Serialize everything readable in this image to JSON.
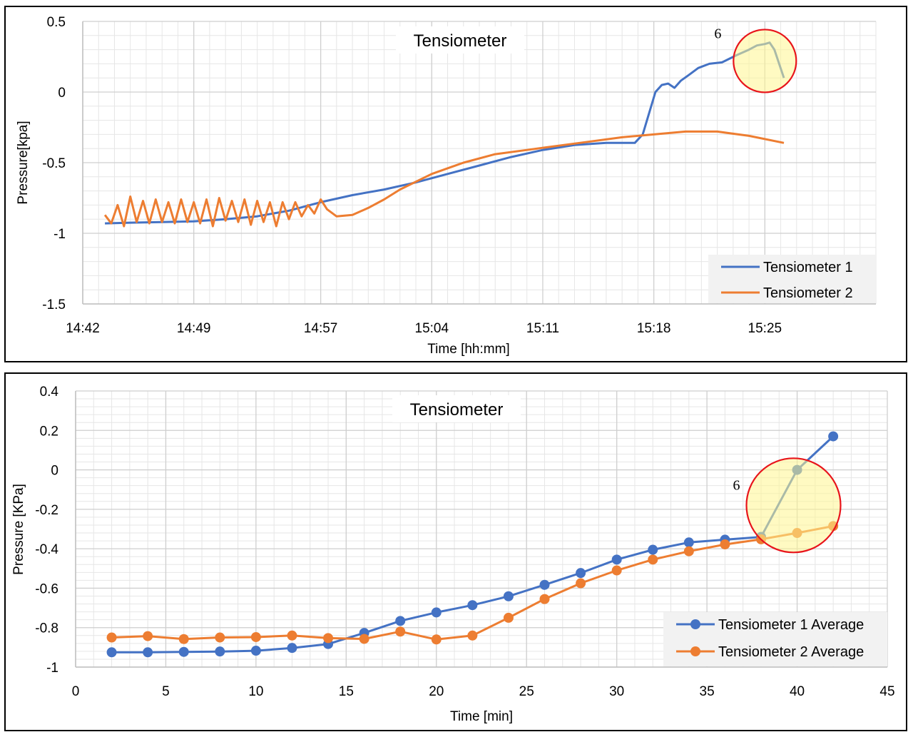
{
  "colors": {
    "series1": "#4472C4",
    "series2": "#ED7D31",
    "highlight_fill": "#FFF68F",
    "highlight_stroke": "#E8141B"
  },
  "chart_data": [
    {
      "type": "line",
      "title": "Tensiometer",
      "xlabel": "Time [hh:mm]",
      "ylabel": "Pressure[kpa]",
      "x_unit": "minutes since 14:42",
      "xlim": [
        0,
        50
      ],
      "ylim": [
        -1.5,
        0.5
      ],
      "x_ticks": [
        {
          "x": 0,
          "label": "14:42"
        },
        {
          "x": 7,
          "label": "14:49"
        },
        {
          "x": 15,
          "label": "14:57"
        },
        {
          "x": 22,
          "label": "15:04"
        },
        {
          "x": 29,
          "label": "15:11"
        },
        {
          "x": 36,
          "label": "15:18"
        },
        {
          "x": 43,
          "label": "15:25"
        }
      ],
      "y_ticks": [
        0.5,
        0,
        -0.5,
        -1,
        -1.5
      ],
      "y_tick_labels": [
        "0.5",
        "0",
        "-0.5",
        "-1",
        "-1.5"
      ],
      "grid": true,
      "legend": "bottom-right",
      "annotation": {
        "label": "6",
        "x": 43,
        "y": 0.22
      },
      "series": [
        {
          "name": "Tensiometer 1",
          "x": [
            1.4,
            3,
            5,
            7,
            9,
            11,
            13,
            15,
            17,
            19,
            21,
            23,
            25,
            27,
            29,
            31,
            33,
            34.8,
            35.3,
            35.7,
            36.1,
            36.5,
            36.9,
            37.3,
            37.7,
            38.2,
            38.8,
            39.5,
            40.3,
            41.2,
            42,
            42.5,
            43,
            43.3,
            43.6,
            44.2
          ],
          "y": [
            -0.93,
            -0.925,
            -0.92,
            -0.915,
            -0.9,
            -0.88,
            -0.84,
            -0.78,
            -0.73,
            -0.69,
            -0.64,
            -0.58,
            -0.52,
            -0.46,
            -0.41,
            -0.375,
            -0.36,
            -0.36,
            -0.3,
            -0.15,
            0.0,
            0.05,
            0.06,
            0.03,
            0.08,
            0.12,
            0.17,
            0.2,
            0.21,
            0.26,
            0.3,
            0.33,
            0.34,
            0.35,
            0.3,
            0.1
          ]
        },
        {
          "name": "Tensiometer 2",
          "x": [
            1.4,
            1.8,
            2.2,
            2.6,
            3.0,
            3.4,
            3.8,
            4.2,
            4.6,
            5.0,
            5.4,
            5.8,
            6.2,
            6.6,
            7.0,
            7.4,
            7.8,
            8.2,
            8.6,
            9.0,
            9.4,
            9.8,
            10.2,
            10.6,
            11.0,
            11.4,
            11.8,
            12.2,
            12.6,
            13.0,
            13.4,
            13.8,
            14.2,
            14.6,
            15.0,
            15.4,
            16.0,
            17,
            18,
            19,
            20,
            22,
            24,
            26,
            28,
            30,
            32,
            34,
            36,
            38,
            40,
            42,
            44.2
          ],
          "y": [
            -0.87,
            -0.93,
            -0.8,
            -0.95,
            -0.74,
            -0.92,
            -0.77,
            -0.93,
            -0.76,
            -0.92,
            -0.78,
            -0.93,
            -0.76,
            -0.92,
            -0.78,
            -0.93,
            -0.76,
            -0.95,
            -0.75,
            -0.91,
            -0.77,
            -0.92,
            -0.76,
            -0.94,
            -0.77,
            -0.92,
            -0.78,
            -0.95,
            -0.78,
            -0.9,
            -0.78,
            -0.88,
            -0.8,
            -0.86,
            -0.76,
            -0.83,
            -0.88,
            -0.87,
            -0.82,
            -0.76,
            -0.69,
            -0.58,
            -0.5,
            -0.44,
            -0.41,
            -0.38,
            -0.35,
            -0.32,
            -0.3,
            -0.28,
            -0.28,
            -0.31,
            -0.36
          ]
        }
      ]
    },
    {
      "type": "line",
      "title": "Tensiometer",
      "xlabel": "Time [min]",
      "ylabel": "Pressure [KPa]",
      "xlim": [
        0,
        45
      ],
      "ylim": [
        -1,
        0.4
      ],
      "x_ticks": [
        0,
        5,
        10,
        15,
        20,
        25,
        30,
        35,
        40,
        45
      ],
      "x_tick_labels": [
        "0",
        "5",
        "10",
        "15",
        "20",
        "25",
        "30",
        "35",
        "40",
        "45"
      ],
      "y_ticks": [
        0.4,
        0.2,
        0,
        -0.2,
        -0.4,
        -0.6,
        -0.8,
        -1
      ],
      "y_tick_labels": [
        "0.4",
        "0.2",
        "0",
        "-0.2",
        "-0.4",
        "-0.6",
        "-0.8",
        "-1"
      ],
      "grid": true,
      "legend": "bottom-right",
      "annotation": {
        "label": "6",
        "x": 39.8,
        "y": -0.18
      },
      "series": [
        {
          "name": "Tensiometer 1 Average",
          "x": [
            2,
            4,
            6,
            8,
            10,
            12,
            14,
            16,
            18,
            20,
            22,
            24,
            26,
            28,
            30,
            32,
            34,
            36,
            38,
            40,
            42
          ],
          "y": [
            -0.925,
            -0.925,
            -0.923,
            -0.921,
            -0.917,
            -0.903,
            -0.883,
            -0.827,
            -0.766,
            -0.723,
            -0.686,
            -0.641,
            -0.583,
            -0.523,
            -0.455,
            -0.405,
            -0.368,
            -0.354,
            -0.34,
            0.0,
            0.17
          ]
        },
        {
          "name": "Tensiometer 2 Average",
          "x": [
            2,
            4,
            6,
            8,
            10,
            12,
            14,
            16,
            18,
            20,
            22,
            24,
            26,
            28,
            30,
            32,
            34,
            36,
            38,
            40,
            42
          ],
          "y": [
            -0.85,
            -0.843,
            -0.858,
            -0.85,
            -0.848,
            -0.84,
            -0.853,
            -0.857,
            -0.82,
            -0.86,
            -0.84,
            -0.75,
            -0.655,
            -0.575,
            -0.51,
            -0.455,
            -0.413,
            -0.378,
            -0.352,
            -0.32,
            -0.285
          ]
        }
      ]
    }
  ]
}
